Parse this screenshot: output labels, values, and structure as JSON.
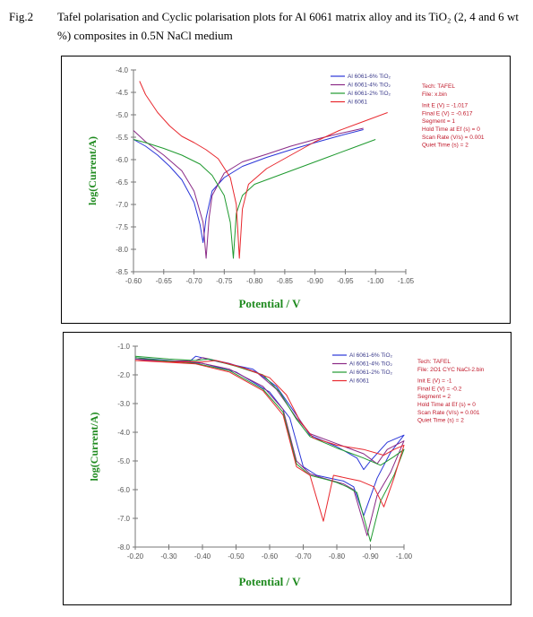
{
  "caption": {
    "label": "Fig.2",
    "text": "Tafel polarisation and Cyclic polarisation plots for Al 6061 matrix alloy and its TiO₂ (2, 4 and 6 wt %) composites in 0.5N NaCl medium"
  },
  "colors": {
    "blue": "#2a35d8",
    "purple": "#8a2a86",
    "green": "#1f9a2f",
    "red": "#e8282e",
    "axis": "#777777",
    "label": "#1e8a1e",
    "info": "#c0182a"
  },
  "chart_data": [
    {
      "type": "line",
      "title": "",
      "xlabel": "Potential / V",
      "ylabel": "log(Current/A)",
      "xlim": [
        -0.6,
        -1.05
      ],
      "ylim": [
        -8.5,
        -4.0
      ],
      "x_ticks": [
        "-0.60",
        "-0.65",
        "-0.70",
        "-0.75",
        "-0.80",
        "-0.85",
        "-0.90",
        "-0.95",
        "-1.00",
        "-1.05"
      ],
      "y_ticks": [
        "-4.0",
        "-4.5",
        "-5.0",
        "-5.5",
        "-6.0",
        "-6.5",
        "-7.0",
        "-7.5",
        "-8.0",
        "-8.5"
      ],
      "legend_position": "top-right",
      "info": [
        "Tech: TAFEL",
        "File: x.bin",
        "Init E (V) = -1.017",
        "Final E (V) = -0.617",
        "Segment = 1",
        "Hold Time at Ef (s) = 0",
        "Scan Rate (V/s) = 0.001",
        "Quiet Time (s) = 2"
      ],
      "series": [
        {
          "name": "Al 6061-6% TiO₂",
          "color": "#2a35d8",
          "x": [
            -0.6,
            -0.62,
            -0.64,
            -0.66,
            -0.68,
            -0.7,
            -0.71,
            -0.715,
            -0.72,
            -0.73,
            -0.75,
            -0.78,
            -0.82,
            -0.86,
            -0.9,
            -0.94,
            -0.98
          ],
          "y": [
            -5.55,
            -5.7,
            -5.9,
            -6.15,
            -6.45,
            -6.95,
            -7.45,
            -7.85,
            -7.3,
            -6.7,
            -6.4,
            -6.15,
            -5.95,
            -5.78,
            -5.62,
            -5.47,
            -5.33
          ]
        },
        {
          "name": "Al 6061-4% TiO₂",
          "color": "#8a2a86",
          "x": [
            -0.6,
            -0.62,
            -0.65,
            -0.68,
            -0.7,
            -0.715,
            -0.72,
            -0.725,
            -0.73,
            -0.75,
            -0.78,
            -0.82,
            -0.86,
            -0.9,
            -0.94,
            -0.98
          ],
          "y": [
            -5.35,
            -5.6,
            -5.9,
            -6.25,
            -6.7,
            -7.4,
            -8.2,
            -7.3,
            -6.8,
            -6.3,
            -6.05,
            -5.88,
            -5.7,
            -5.55,
            -5.42,
            -5.3
          ]
        },
        {
          "name": "Al 6061-2% TiO₂",
          "color": "#1f9a2f",
          "x": [
            -0.6,
            -0.62,
            -0.65,
            -0.68,
            -0.71,
            -0.73,
            -0.75,
            -0.76,
            -0.765,
            -0.77,
            -0.78,
            -0.8,
            -0.84,
            -0.88,
            -0.92,
            -0.96,
            -1.0
          ],
          "y": [
            -5.55,
            -5.62,
            -5.75,
            -5.9,
            -6.1,
            -6.35,
            -6.8,
            -7.4,
            -8.2,
            -7.2,
            -6.8,
            -6.55,
            -6.35,
            -6.15,
            -5.95,
            -5.75,
            -5.55
          ]
        },
        {
          "name": "Al 6061",
          "color": "#e8282e",
          "x": [
            -0.61,
            -0.62,
            -0.64,
            -0.66,
            -0.68,
            -0.7,
            -0.72,
            -0.74,
            -0.76,
            -0.77,
            -0.775,
            -0.78,
            -0.79,
            -0.82,
            -0.86,
            -0.9,
            -0.94,
            -0.98,
            -1.02
          ],
          "y": [
            -4.25,
            -4.55,
            -4.95,
            -5.25,
            -5.48,
            -5.62,
            -5.78,
            -5.98,
            -6.4,
            -7.0,
            -8.2,
            -7.1,
            -6.55,
            -6.2,
            -5.9,
            -5.6,
            -5.35,
            -5.15,
            -4.95
          ]
        }
      ]
    },
    {
      "type": "line",
      "title": "",
      "xlabel": "Potential / V",
      "ylabel": "log(Current/A)",
      "xlim": [
        -0.2,
        -1.0
      ],
      "ylim": [
        -8.0,
        -1.0
      ],
      "x_ticks": [
        "-0.20",
        "-0.30",
        "-0.40",
        "-0.50",
        "-0.60",
        "-0.70",
        "-0.80",
        "-0.90",
        "-1.00"
      ],
      "y_ticks": [
        "-1.0",
        "-2.0",
        "-3.0",
        "-4.0",
        "-5.0",
        "-6.0",
        "-7.0",
        "-8.0"
      ],
      "legend_position": "top-right",
      "info": [
        "Tech: TAFEL",
        "File: 2O1 CYC NaCl-2.bin",
        "Init E (V) = -1",
        "Final E (V) = -0.2",
        "Segment = 2",
        "Hold Time at Ef (s) = 0",
        "Scan Rate (V/s) = 0.001",
        "Quiet Time (s) = 2"
      ],
      "series": [
        {
          "name": "Al 6061-6% TiO₂",
          "color": "#2a35d8",
          "x": [
            -0.2,
            -0.3,
            -0.36,
            -0.38,
            -0.45,
            -0.55,
            -0.62,
            -0.68,
            -0.72,
            -0.8,
            -0.86,
            -0.88,
            -0.9,
            -0.95,
            -1.0,
            -0.96,
            -0.92,
            -0.88,
            -0.85,
            -0.82,
            -0.78,
            -0.74,
            -0.7,
            -0.66,
            -0.6,
            -0.5,
            -0.4,
            -0.3,
            -0.2
          ],
          "y": [
            -1.4,
            -1.5,
            -1.55,
            -1.35,
            -1.55,
            -1.8,
            -2.4,
            -3.4,
            -4.1,
            -4.5,
            -4.9,
            -5.3,
            -5.0,
            -4.35,
            -4.1,
            -4.7,
            -5.6,
            -6.9,
            -5.9,
            -5.7,
            -5.6,
            -5.5,
            -5.2,
            -3.5,
            -2.6,
            -1.9,
            -1.6,
            -1.5,
            -1.45
          ]
        },
        {
          "name": "Al 6061-4% TiO₂",
          "color": "#8a2a86",
          "x": [
            -0.2,
            -0.3,
            -0.38,
            -0.4,
            -0.48,
            -0.56,
            -0.62,
            -0.68,
            -0.72,
            -0.8,
            -0.88,
            -0.92,
            -0.95,
            -1.0,
            -0.96,
            -0.92,
            -0.89,
            -0.85,
            -0.82,
            -0.79,
            -0.76,
            -0.72,
            -0.68,
            -0.64,
            -0.58,
            -0.48,
            -0.38,
            -0.28,
            -0.2
          ],
          "y": [
            -1.45,
            -1.52,
            -1.5,
            -1.4,
            -1.6,
            -1.9,
            -2.5,
            -3.5,
            -4.05,
            -4.4,
            -4.75,
            -5.1,
            -4.6,
            -4.3,
            -5.4,
            -6.2,
            -7.6,
            -6.0,
            -5.8,
            -5.7,
            -5.6,
            -5.45,
            -5.0,
            -3.2,
            -2.4,
            -1.8,
            -1.55,
            -1.5,
            -1.5
          ]
        },
        {
          "name": "Al 6061-2% TiO₂",
          "color": "#1f9a2f",
          "x": [
            -0.2,
            -0.3,
            -0.38,
            -0.42,
            -0.5,
            -0.58,
            -0.63,
            -0.68,
            -0.72,
            -0.8,
            -0.88,
            -0.93,
            -0.97,
            -1.0,
            -0.97,
            -0.93,
            -0.9,
            -0.86,
            -0.83,
            -0.8,
            -0.77,
            -0.72,
            -0.68,
            -0.64,
            -0.58,
            -0.48,
            -0.38,
            -0.28,
            -0.2
          ],
          "y": [
            -1.35,
            -1.45,
            -1.5,
            -1.45,
            -1.7,
            -2.0,
            -2.6,
            -3.55,
            -4.15,
            -4.55,
            -4.9,
            -5.15,
            -4.85,
            -4.6,
            -5.5,
            -6.4,
            -7.8,
            -6.1,
            -5.9,
            -5.75,
            -5.65,
            -5.5,
            -5.1,
            -3.3,
            -2.5,
            -1.85,
            -1.6,
            -1.5,
            -1.4
          ]
        },
        {
          "name": "Al 6061",
          "color": "#e8282e",
          "x": [
            -0.2,
            -0.3,
            -0.4,
            -0.44,
            -0.52,
            -0.6,
            -0.65,
            -0.69,
            -0.73,
            -0.8,
            -0.88,
            -0.94,
            -0.97,
            -1.0,
            -0.97,
            -0.94,
            -0.91,
            -0.87,
            -0.83,
            -0.79,
            -0.76,
            -0.72,
            -0.68,
            -0.64,
            -0.58,
            -0.48,
            -0.38,
            -0.28,
            -0.2
          ],
          "y": [
            -1.5,
            -1.55,
            -1.55,
            -1.5,
            -1.75,
            -2.1,
            -2.7,
            -3.6,
            -4.2,
            -4.45,
            -4.6,
            -4.8,
            -4.6,
            -4.45,
            -5.6,
            -6.6,
            -5.9,
            -5.7,
            -5.6,
            -5.5,
            -7.1,
            -5.5,
            -5.2,
            -3.4,
            -2.55,
            -1.9,
            -1.62,
            -1.55,
            -1.5
          ]
        }
      ]
    }
  ]
}
